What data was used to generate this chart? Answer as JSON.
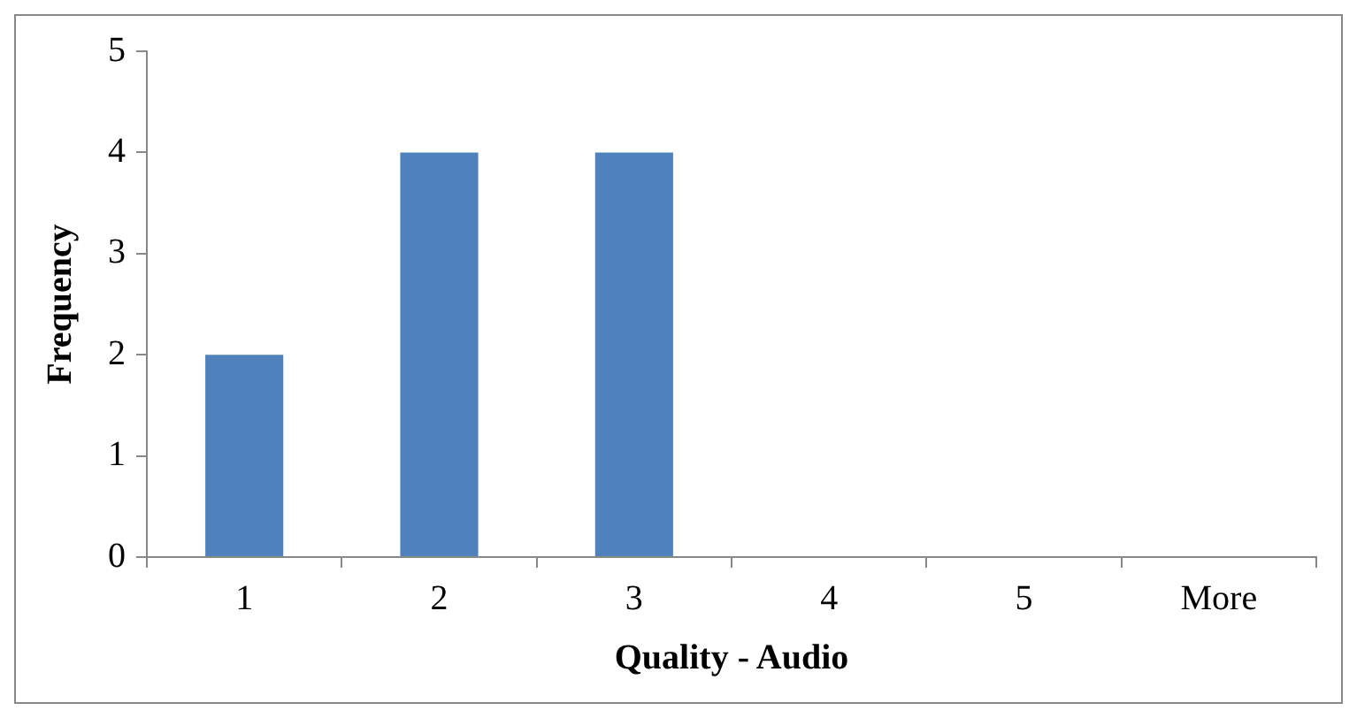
{
  "chart_data": {
    "type": "bar",
    "xlabel": "Quality - Audio",
    "ylabel": "Frequency",
    "categories": [
      "1",
      "2",
      "3",
      "4",
      "5",
      "More"
    ],
    "values": [
      2,
      4,
      4,
      0,
      0,
      0
    ],
    "color": "#4f81bd",
    "ylim": [
      0,
      5
    ],
    "yticks": [
      0,
      1,
      2,
      3,
      4,
      5
    ]
  }
}
